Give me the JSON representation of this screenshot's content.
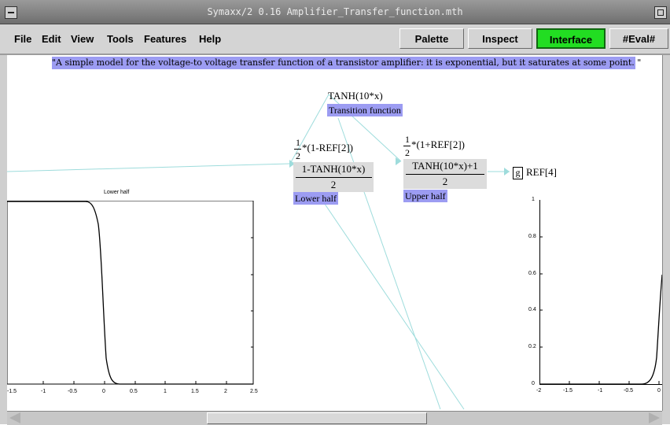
{
  "window": {
    "title": "Symaxx/2 0.16 Amplifier_Transfer_function.mth"
  },
  "menu": [
    "File",
    "Edit",
    "View",
    "Tools",
    "Features",
    "Help"
  ],
  "toolbar": {
    "palette": "Palette",
    "inspect": "Inspect",
    "interface": "Interface",
    "eval": "#Eval#"
  },
  "comment": "\"A simple model for  the voltage-to voltage transfer function of a transistor amplifier: it is exponential, but it saturates at some point. \"",
  "nodes": {
    "transition": {
      "formula": "TANH(10*x)",
      "label": "Transition function"
    },
    "lower": {
      "coef_num": "1",
      "coef_den": "2",
      "coef_rest": "*(1-REF[2])",
      "numerator": "1-TANH(10*x)",
      "denominator": "2",
      "label": "Lower half"
    },
    "upper": {
      "coef_num": "1",
      "coef_den": "2",
      "coef_rest": "*(1+REF[2])",
      "numerator": "TANH(10*x)+1",
      "denominator": "2",
      "label": "Upper half"
    },
    "graph_ref": {
      "icon_letter": "g",
      "text": "REF[4]"
    }
  },
  "plots": {
    "left": {
      "title": "Lower half",
      "x_ticks": [
        "-1.5",
        "-1",
        "-0.5",
        "0",
        "0.5",
        "1",
        "1.5",
        "2",
        "2.5"
      ]
    },
    "right": {
      "y_ticks": [
        "1",
        "0.8",
        "0.6",
        "0.4",
        "0.2",
        "0"
      ],
      "x_ticks": [
        "-2",
        "-1.5",
        "-1",
        "-0.5",
        "0"
      ]
    }
  },
  "colors": {
    "accent_label": "#9c9cf2",
    "interface_button": "#22dd22",
    "connector": "#9edcdc",
    "formula_green": "#006600"
  }
}
